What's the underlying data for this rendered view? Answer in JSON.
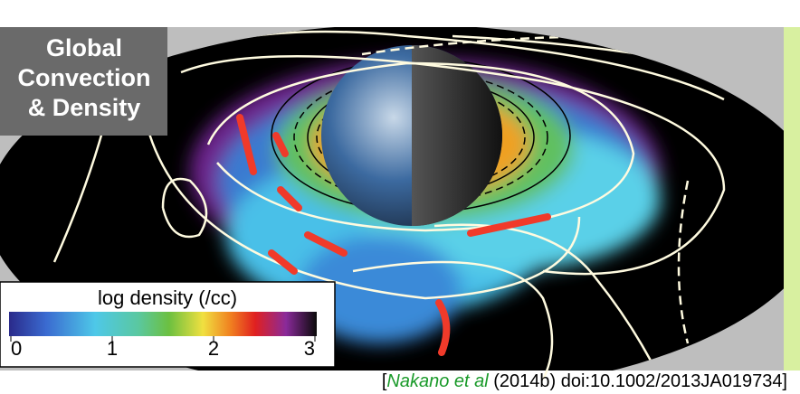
{
  "title_box": {
    "lines": [
      "Global",
      "Convection",
      "& Density"
    ]
  },
  "colorbar": {
    "label": "log density (/cc)",
    "ticks": [
      0,
      1,
      2,
      3
    ]
  },
  "citation": {
    "open": "[",
    "authors": "Nakano et al",
    "rest": " (2014b) doi:10.1002/2013JA019734]"
  }
}
